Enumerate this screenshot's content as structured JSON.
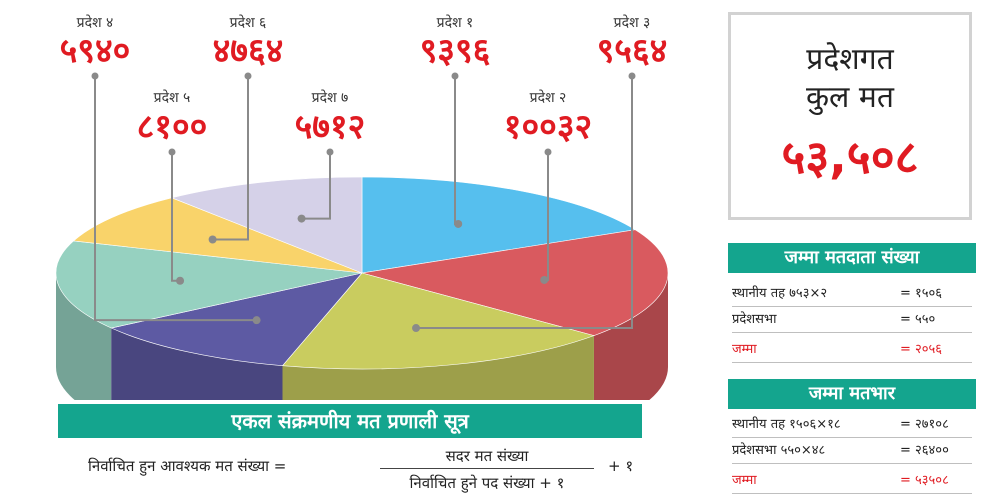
{
  "chart_data": {
    "type": "pie",
    "style": "3d",
    "title": "",
    "slices": [
      {
        "label": "प्रदेश १",
        "value": 9396,
        "display": "९३९६",
        "color": "#56bfee"
      },
      {
        "label": "प्रदेश २",
        "value": 10032,
        "display": "१००३२",
        "color": "#d95a5f"
      },
      {
        "label": "प्रदेश ३",
        "value": 9564,
        "display": "९५६४",
        "color": "#c9cc5f"
      },
      {
        "label": "प्रदेश ४",
        "value": 5940,
        "display": "५९४०",
        "color": "#5d5aa3"
      },
      {
        "label": "प्रदेश ५",
        "value": 8100,
        "display": "८१००",
        "color": "#96d1c0"
      },
      {
        "label": "प्रदेश ६",
        "value": 4764,
        "display": "४७६४",
        "color": "#f9d36a"
      },
      {
        "label": "प्रदेश ७",
        "value": 5712,
        "display": "५७१२",
        "color": "#d5d1e8"
      }
    ]
  },
  "total": {
    "title_line1": "प्रदेशगत",
    "title_line2": "कुल मत",
    "value": "५३,५०८"
  },
  "voters": {
    "header": "जम्मा मतदाता संख्या",
    "rows": [
      {
        "label": "स्थानीय तह  ७५३×२",
        "value": "= १५०६"
      },
      {
        "label": "प्रदेशसभा",
        "value": "= ५५०"
      },
      {
        "label": "जम्मा",
        "value": "= २०५६"
      }
    ]
  },
  "weight": {
    "header": "जम्मा मतभार",
    "rows": [
      {
        "label": "स्थानीय तह १५०६×१८",
        "value": "= २७१०८"
      },
      {
        "label": "प्रदेशसभा ५५०×४८",
        "value": "= २६४००"
      },
      {
        "label": "जम्मा",
        "value": "= ५३५०८"
      }
    ]
  },
  "formula": {
    "header": "एकल संक्रमणीय मत प्रणाली सूत्र",
    "lhs": "निर्वाचित हुन आवश्यक मत संख्या =",
    "numerator": "सदर मत संख्या",
    "denominator": "निर्वाचित हुने पद संख्या + १",
    "tail": "+ १"
  }
}
